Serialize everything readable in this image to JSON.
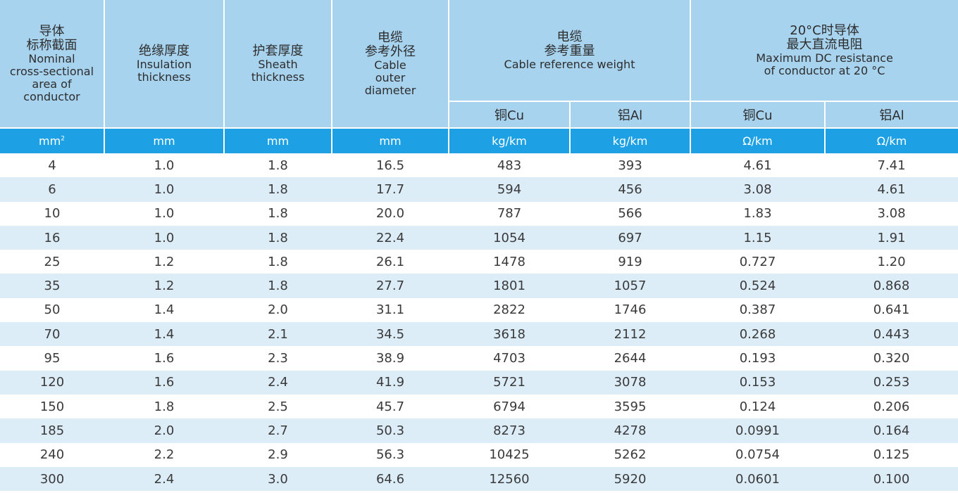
{
  "header": {
    "col1": {
      "zh1": "导体",
      "zh2": "标称截面",
      "en": [
        "Nominal",
        "cross-sectional",
        "area of",
        "conductor"
      ]
    },
    "col2": {
      "zh": "绝缘厚度",
      "en": [
        "Insulation",
        "thickness"
      ]
    },
    "col3": {
      "zh": "护套厚度",
      "en": [
        "Sheath",
        "thickness"
      ]
    },
    "col4": {
      "zh1": "电缆",
      "zh2": "参考外径",
      "en": [
        "Cable",
        "outer",
        "diameter"
      ]
    },
    "col5": {
      "zh1": "电缆",
      "zh2": "参考重量",
      "en": "Cable reference weight",
      "sub": [
        "铜Cu",
        "铝Al"
      ]
    },
    "col6": {
      "zh1": "20°C时导体",
      "zh2": "最大直流电阻",
      "en": [
        "Maximum DC resistance",
        "of conductor at 20 °C"
      ],
      "sub": [
        "铜Cu",
        "铝Al"
      ]
    }
  },
  "units": {
    "area": "mm",
    "area_sup": "2",
    "insulation": "mm",
    "sheath": "mm",
    "diameter": "mm",
    "cu_weight": "kg/km",
    "al_weight": "kg/km",
    "cu_res": "Ω/km",
    "al_res": "Ω/km"
  },
  "rows": [
    [
      "4",
      "1.0",
      "1.8",
      "16.5",
      "483",
      "393",
      "4.61",
      "7.41"
    ],
    [
      "6",
      "1.0",
      "1.8",
      "17.7",
      "594",
      "456",
      "3.08",
      "4.61"
    ],
    [
      "10",
      "1.0",
      "1.8",
      "20.0",
      "787",
      "566",
      "1.83",
      "3.08"
    ],
    [
      "16",
      "1.0",
      "1.8",
      "22.4",
      "1054",
      "697",
      "1.15",
      "1.91"
    ],
    [
      "25",
      "1.2",
      "1.8",
      "26.1",
      "1478",
      "919",
      "0.727",
      "1.20"
    ],
    [
      "35",
      "1.2",
      "1.8",
      "27.7",
      "1801",
      "1057",
      "0.524",
      "0.868"
    ],
    [
      "50",
      "1.4",
      "2.0",
      "31.1",
      "2822",
      "1746",
      "0.387",
      "0.641"
    ],
    [
      "70",
      "1.4",
      "2.1",
      "34.5",
      "3618",
      "2112",
      "0.268",
      "0.443"
    ],
    [
      "95",
      "1.6",
      "2.3",
      "38.9",
      "4703",
      "2644",
      "0.193",
      "0.320"
    ],
    [
      "120",
      "1.6",
      "2.4",
      "41.9",
      "5721",
      "3078",
      "0.153",
      "0.253"
    ],
    [
      "150",
      "1.8",
      "2.5",
      "45.7",
      "6794",
      "3595",
      "0.124",
      "0.206"
    ],
    [
      "185",
      "2.0",
      "2.7",
      "50.3",
      "8273",
      "4278",
      "0.0991",
      "0.164"
    ],
    [
      "240",
      "2.2",
      "2.9",
      "56.3",
      "10425",
      "5262",
      "0.0754",
      "0.125"
    ],
    [
      "300",
      "2.4",
      "3.0",
      "64.6",
      "12560",
      "5920",
      "0.0601",
      "0.100"
    ]
  ]
}
